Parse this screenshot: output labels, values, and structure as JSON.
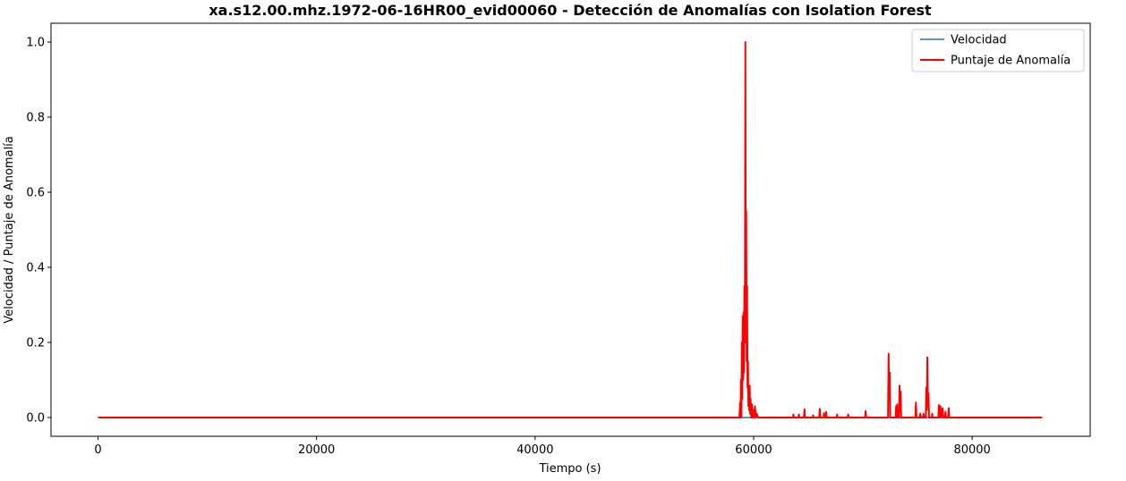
{
  "chart_data": {
    "type": "line",
    "title": "xa.s12.00.mhz.1972-06-16HR00_evid00060 - Detección de Anomalías con Isolation Forest",
    "xlabel": "Tiempo (s)",
    "ylabel": "Velocidad / Puntaje de Anomalía",
    "xlim": [
      -4300,
      90800
    ],
    "ylim": [
      -0.05,
      1.05
    ],
    "x_ticks": [
      0,
      20000,
      40000,
      60000,
      80000
    ],
    "x_tick_labels": [
      "0",
      "20000",
      "40000",
      "60000",
      "80000"
    ],
    "y_ticks": [
      0.0,
      0.2,
      0.4,
      0.6,
      0.8,
      1.0
    ],
    "y_tick_labels": [
      "0.0",
      "0.2",
      "0.4",
      "0.6",
      "0.8",
      "1.0"
    ],
    "grid": false,
    "legend_position": "top-right",
    "series": [
      {
        "name": "Velocidad",
        "color": "#1f77b4",
        "points": [
          [
            0,
            0.0
          ],
          [
            86400,
            0.0
          ]
        ]
      },
      {
        "name": "Puntaje de Anomalía",
        "color": "#ff0000",
        "points": [
          [
            0,
            0.0
          ],
          [
            58700,
            0.0
          ],
          [
            58760,
            0.04
          ],
          [
            58800,
            0.0
          ],
          [
            58840,
            0.1
          ],
          [
            58880,
            0.0
          ],
          [
            58920,
            0.2
          ],
          [
            58960,
            0.05
          ],
          [
            59000,
            0.27
          ],
          [
            59040,
            0.1
          ],
          [
            59080,
            0.28
          ],
          [
            59120,
            0.12
          ],
          [
            59160,
            0.35
          ],
          [
            59200,
            0.2
          ],
          [
            59240,
            1.0
          ],
          [
            59280,
            0.3
          ],
          [
            59320,
            0.55
          ],
          [
            59360,
            0.15
          ],
          [
            59400,
            0.35
          ],
          [
            59440,
            0.08
          ],
          [
            59480,
            0.15
          ],
          [
            59520,
            0.03
          ],
          [
            59560,
            0.085
          ],
          [
            59600,
            0.02
          ],
          [
            59640,
            0.085
          ],
          [
            59680,
            0.01
          ],
          [
            59720,
            0.05
          ],
          [
            59780,
            0.0
          ],
          [
            59840,
            0.035
          ],
          [
            59900,
            0.0
          ],
          [
            59960,
            0.02
          ],
          [
            60040,
            0.0
          ],
          [
            60120,
            0.03
          ],
          [
            60200,
            0.0
          ],
          [
            60300,
            0.01
          ],
          [
            60400,
            0.0
          ],
          [
            63600,
            0.0
          ],
          [
            63640,
            0.008
          ],
          [
            63680,
            0.0
          ],
          [
            64100,
            0.0
          ],
          [
            64140,
            0.008
          ],
          [
            64180,
            0.0
          ],
          [
            64600,
            0.0
          ],
          [
            64650,
            0.022
          ],
          [
            64700,
            0.0
          ],
          [
            65400,
            0.0
          ],
          [
            65440,
            0.006
          ],
          [
            65480,
            0.0
          ],
          [
            66000,
            0.0
          ],
          [
            66050,
            0.023
          ],
          [
            66100,
            0.0
          ],
          [
            66400,
            0.0
          ],
          [
            66440,
            0.012
          ],
          [
            66480,
            0.0
          ],
          [
            66600,
            0.0
          ],
          [
            66640,
            0.015
          ],
          [
            66680,
            0.0
          ],
          [
            67600,
            0.0
          ],
          [
            67640,
            0.008
          ],
          [
            67680,
            0.0
          ],
          [
            68600,
            0.0
          ],
          [
            68650,
            0.008
          ],
          [
            68700,
            0.0
          ],
          [
            70200,
            0.0
          ],
          [
            70250,
            0.017
          ],
          [
            70300,
            0.0
          ],
          [
            72300,
            0.0
          ],
          [
            72350,
            0.17
          ],
          [
            72400,
            0.05
          ],
          [
            72450,
            0.12
          ],
          [
            72500,
            0.0
          ],
          [
            73000,
            0.0
          ],
          [
            73040,
            0.03
          ],
          [
            73080,
            0.0
          ],
          [
            73140,
            0.035
          ],
          [
            73180,
            0.0
          ],
          [
            73300,
            0.0
          ],
          [
            73350,
            0.085
          ],
          [
            73400,
            0.02
          ],
          [
            73450,
            0.07
          ],
          [
            73500,
            0.0
          ],
          [
            74800,
            0.0
          ],
          [
            74850,
            0.04
          ],
          [
            74900,
            0.0
          ],
          [
            75200,
            0.0
          ],
          [
            75250,
            0.01
          ],
          [
            75300,
            0.0
          ],
          [
            75500,
            0.0
          ],
          [
            75550,
            0.01
          ],
          [
            75600,
            0.0
          ],
          [
            75750,
            0.0
          ],
          [
            75800,
            0.08
          ],
          [
            75850,
            0.02
          ],
          [
            75900,
            0.16
          ],
          [
            75950,
            0.03
          ],
          [
            76000,
            0.065
          ],
          [
            76050,
            0.0
          ],
          [
            76300,
            0.0
          ],
          [
            76340,
            0.01
          ],
          [
            76380,
            0.0
          ],
          [
            76900,
            0.0
          ],
          [
            76950,
            0.033
          ],
          [
            77000,
            0.0
          ],
          [
            77100,
            0.03
          ],
          [
            77150,
            0.0
          ],
          [
            77300,
            0.025
          ],
          [
            77350,
            0.0
          ],
          [
            77500,
            0.0
          ],
          [
            77550,
            0.015
          ],
          [
            77600,
            0.0
          ],
          [
            77800,
            0.0
          ],
          [
            77850,
            0.025
          ],
          [
            77900,
            0.0
          ],
          [
            86400,
            0.0
          ]
        ]
      }
    ]
  }
}
